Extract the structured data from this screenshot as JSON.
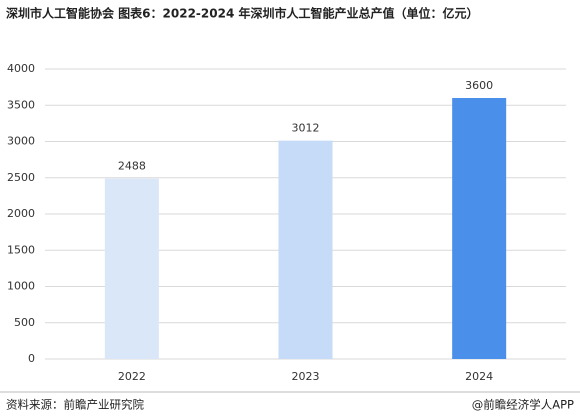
{
  "chart_data": {
    "type": "bar",
    "title": "深圳市人工智能协会  图表6：2022-2024 年深圳市人工智能产业总产值（单位：亿元）",
    "categories": [
      "2022",
      "2023",
      "2024"
    ],
    "values": [
      2488,
      3012,
      3600
    ],
    "colors": [
      "#dae7f9",
      "#c6dbf7",
      "#4a8fe9"
    ],
    "ylim": [
      0,
      4000
    ],
    "yticks": [
      0,
      500,
      1000,
      1500,
      2000,
      2500,
      3000,
      3500,
      4000
    ],
    "grid": true,
    "source": "资料来源：前瞻产业研究院",
    "credit": "@前瞻经济学人APP"
  }
}
